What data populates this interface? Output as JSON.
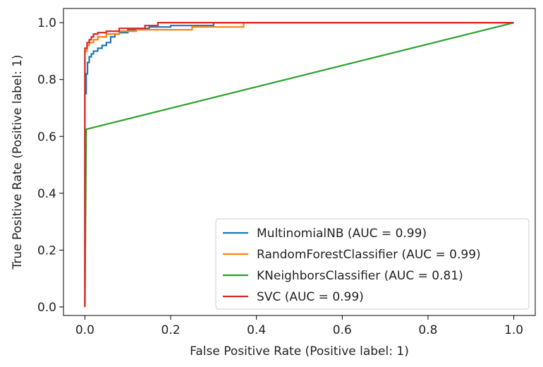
{
  "chart_data": {
    "type": "line",
    "title": "",
    "xlabel": "False Positive Rate (Positive label: 1)",
    "ylabel": "True Positive Rate (Positive label: 1)",
    "xlim": [
      -0.05,
      1.05
    ],
    "ylim": [
      -0.03,
      1.05
    ],
    "xticks": [
      0.0,
      0.2,
      0.4,
      0.6,
      0.8,
      1.0
    ],
    "yticks": [
      0.0,
      0.2,
      0.4,
      0.6,
      0.8,
      1.0
    ],
    "xtick_labels": [
      "0.0",
      "0.2",
      "0.4",
      "0.6",
      "0.8",
      "1.0"
    ],
    "ytick_labels": [
      "0.0",
      "0.2",
      "0.4",
      "0.6",
      "0.8",
      "1.0"
    ],
    "grid": false,
    "legend_position": "lower-right",
    "series": [
      {
        "name": "MultinomialNB (AUC = 0.99)",
        "color": "#1f77b4",
        "x": [
          0,
          0,
          0.003,
          0.003,
          0.006,
          0.006,
          0.01,
          0.01,
          0.015,
          0.015,
          0.02,
          0.02,
          0.03,
          0.03,
          0.04,
          0.04,
          0.05,
          0.05,
          0.06,
          0.06,
          0.07,
          0.07,
          0.08,
          0.08,
          0.1,
          0.1,
          0.12,
          0.12,
          0.15,
          0.15,
          0.2,
          0.2,
          0.3,
          0.3,
          1.0
        ],
        "y": [
          0,
          0.75,
          0.75,
          0.82,
          0.82,
          0.86,
          0.86,
          0.88,
          0.88,
          0.89,
          0.89,
          0.9,
          0.9,
          0.91,
          0.91,
          0.92,
          0.92,
          0.93,
          0.93,
          0.95,
          0.95,
          0.96,
          0.96,
          0.965,
          0.965,
          0.975,
          0.975,
          0.98,
          0.98,
          0.985,
          0.985,
          0.99,
          0.99,
          1.0,
          1.0
        ]
      },
      {
        "name": "RandomForestClassifier (AUC = 0.99)",
        "color": "#ff7f0e",
        "x": [
          0,
          0,
          0.005,
          0.005,
          0.01,
          0.01,
          0.02,
          0.02,
          0.03,
          0.03,
          0.05,
          0.05,
          0.08,
          0.08,
          0.12,
          0.12,
          0.25,
          0.25,
          0.37,
          0.37,
          1.0
        ],
        "y": [
          0,
          0.9,
          0.9,
          0.92,
          0.92,
          0.93,
          0.93,
          0.94,
          0.94,
          0.95,
          0.95,
          0.96,
          0.96,
          0.97,
          0.97,
          0.975,
          0.975,
          0.985,
          0.985,
          1.0,
          1.0
        ]
      },
      {
        "name": "KNeighborsClassifier (AUC = 0.81)",
        "color": "#2ca02c",
        "x": [
          0,
          0.003,
          1.0
        ],
        "y": [
          0,
          0.625,
          1.0
        ]
      },
      {
        "name": "SVC (AUC = 0.99)",
        "color": "#d62728",
        "x": [
          0,
          0,
          0.005,
          0.005,
          0.01,
          0.01,
          0.015,
          0.015,
          0.02,
          0.02,
          0.03,
          0.03,
          0.05,
          0.05,
          0.08,
          0.08,
          0.14,
          0.14,
          0.17,
          0.17,
          1.0
        ],
        "y": [
          0,
          0.91,
          0.91,
          0.93,
          0.93,
          0.94,
          0.94,
          0.95,
          0.95,
          0.96,
          0.96,
          0.965,
          0.965,
          0.97,
          0.97,
          0.98,
          0.98,
          0.99,
          0.99,
          1.0,
          1.0
        ]
      }
    ]
  }
}
